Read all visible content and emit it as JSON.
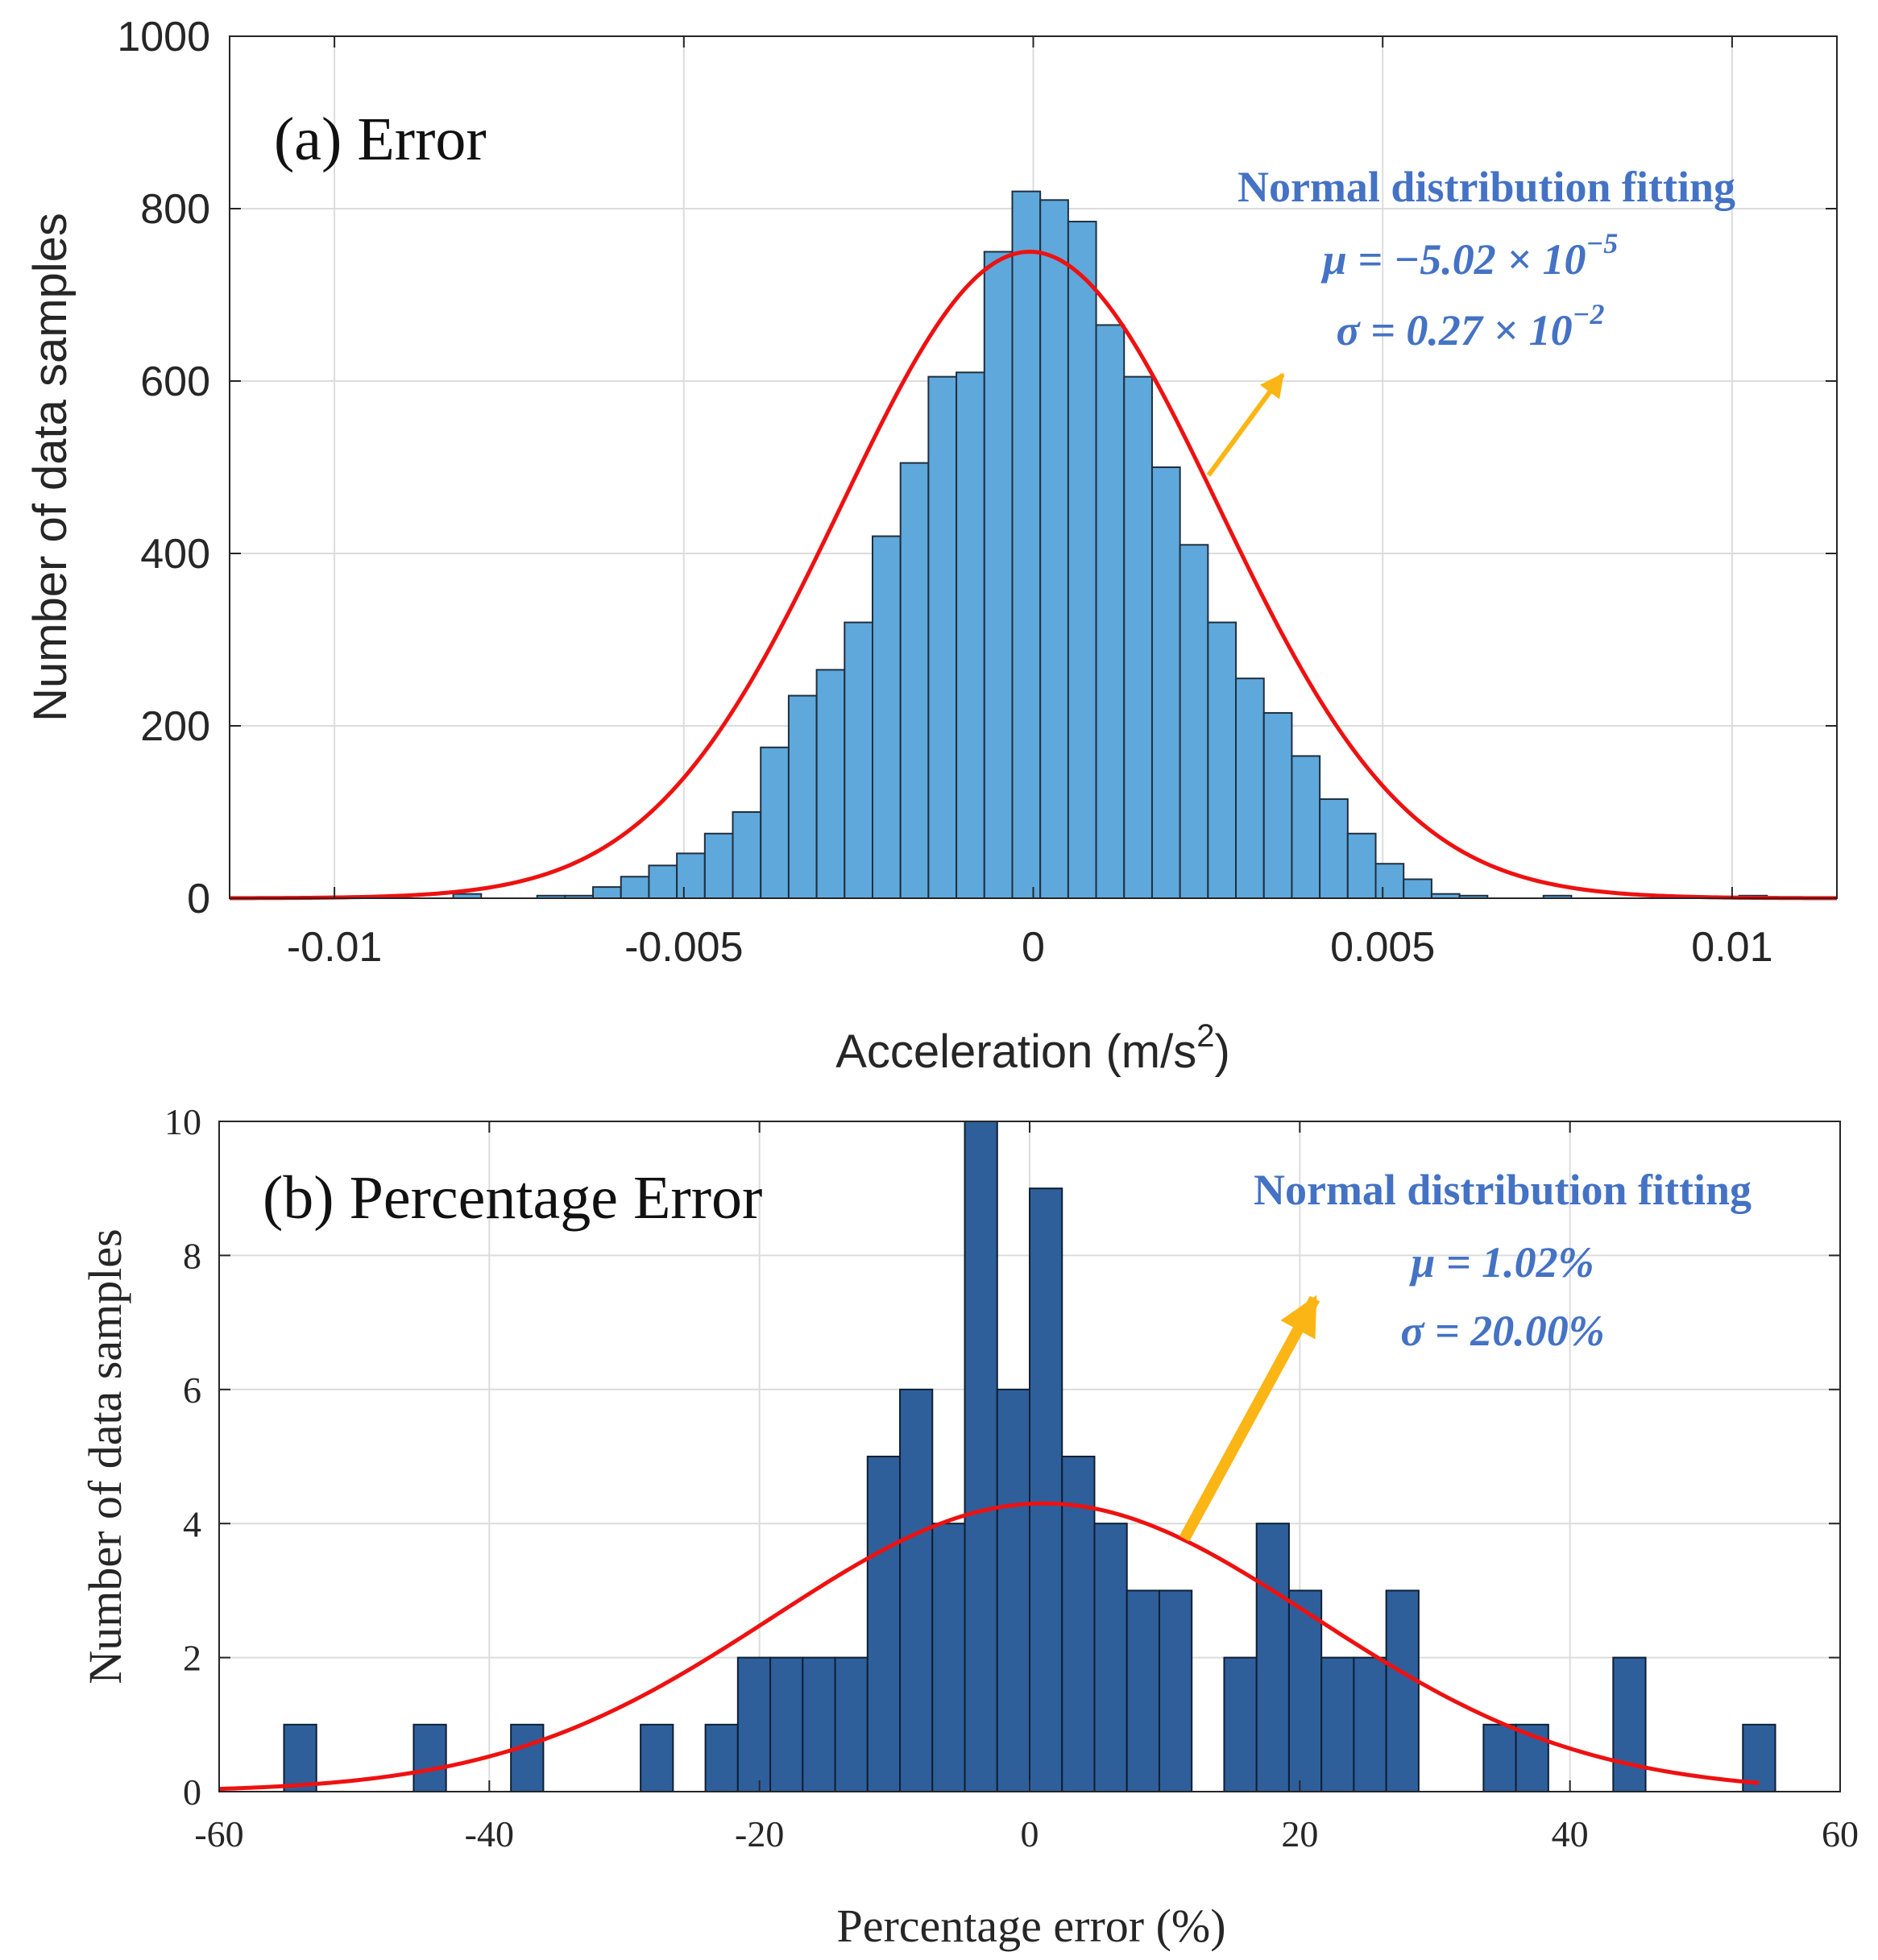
{
  "chart_data": [
    {
      "panel": "a",
      "type": "bar",
      "panel_label": "(a) Error",
      "xlabel": "Acceleration (m/s",
      "xlabel_sup": "2",
      "xlabel_close": ")",
      "ylabel": "Number of data samples",
      "xlim": [
        -0.0115,
        0.0115
      ],
      "ylim": [
        0,
        1000
      ],
      "xticks": [
        -0.01,
        -0.005,
        0,
        0.005,
        0.01
      ],
      "xtick_labels": [
        "-0.01",
        "-0.005",
        "0",
        "0.005",
        "0.01"
      ],
      "yticks": [
        0,
        200,
        400,
        600,
        800,
        1000
      ],
      "ytick_labels": [
        "0",
        "200",
        "400",
        "600",
        "800",
        "1000"
      ],
      "grid": true,
      "bin_width": 0.0004,
      "bin_centers": [
        -0.0081,
        -0.0069,
        -0.0065,
        -0.0061,
        -0.0057,
        -0.0053,
        -0.0049,
        -0.0045,
        -0.0041,
        -0.0037,
        -0.0033,
        -0.0029,
        -0.0025,
        -0.0021,
        -0.0017,
        -0.0013,
        -0.0009,
        -0.0005,
        -0.0001,
        0.0003,
        0.0007,
        0.0011,
        0.0015,
        0.0019,
        0.0023,
        0.0027,
        0.0031,
        0.0035,
        0.0039,
        0.0043,
        0.0047,
        0.0051,
        0.0055,
        0.0059,
        0.0063,
        0.0075,
        0.0103
      ],
      "counts": [
        5,
        3,
        3,
        13,
        25,
        38,
        52,
        75,
        100,
        175,
        235,
        265,
        320,
        420,
        505,
        605,
        610,
        750,
        820,
        810,
        785,
        665,
        605,
        500,
        410,
        320,
        255,
        215,
        165,
        115,
        75,
        40,
        22,
        5,
        3,
        3,
        3
      ],
      "fit": {
        "mu": -5.02e-05,
        "sigma": 0.0027,
        "peak": 750
      },
      "annotation": {
        "title": "Normal distribution fitting",
        "mu_label": "μ = −5.02 × 10",
        "mu_exp": "−5",
        "sigma_label": "σ = 0.27 × 10",
        "sigma_exp": "−2"
      },
      "colors": {
        "bar": "#5fa8db",
        "edge": "#1f2f3f",
        "fit": "#ee1111",
        "arrow": "#fbb514",
        "annotation": "#4472c4"
      }
    },
    {
      "panel": "b",
      "type": "bar",
      "panel_label": "(b) Percentage Error",
      "xlabel": "Percentage error (%)",
      "ylabel": "Number of data samples",
      "xlim": [
        -60,
        60
      ],
      "ylim": [
        0,
        10
      ],
      "xticks": [
        -60,
        -40,
        -20,
        0,
        20,
        40,
        60
      ],
      "xtick_labels": [
        "-60",
        "-40",
        "-20",
        "0",
        "20",
        "40",
        "60"
      ],
      "yticks": [
        0,
        2,
        4,
        6,
        8,
        10
      ],
      "ytick_labels": [
        "0",
        "2",
        "4",
        "6",
        "8",
        "10"
      ],
      "grid": true,
      "bin_width": 2.4,
      "bin_centers": [
        -54.0,
        -44.4,
        -37.2,
        -27.6,
        -22.8,
        -20.4,
        -18.0,
        -15.6,
        -13.2,
        -10.8,
        -8.4,
        -6.0,
        -3.6,
        -1.2,
        1.2,
        3.6,
        6.0,
        8.4,
        10.8,
        15.6,
        18.0,
        20.4,
        22.8,
        25.2,
        27.6,
        34.8,
        37.2,
        44.4,
        54.0
      ],
      "counts": [
        1,
        1,
        1,
        1,
        1,
        2,
        2,
        2,
        2,
        5,
        6,
        4,
        10,
        6,
        9,
        5,
        4,
        3,
        3,
        2,
        4,
        3,
        2,
        2,
        3,
        1,
        1,
        2,
        1
      ],
      "fit": {
        "mu": 1.02,
        "sigma": 20.0,
        "peak": 4.3,
        "range": [
          -60,
          54
        ]
      },
      "annotation": {
        "title": "Normal distribution fitting",
        "mu_label": "μ = 1.02%",
        "sigma_label": "σ = 20.00%"
      },
      "colors": {
        "bar": "#2e5f9b",
        "edge": "#0f1f33",
        "fit": "#ee1111",
        "arrow": "#fbb514",
        "annotation": "#4472c4"
      }
    }
  ]
}
